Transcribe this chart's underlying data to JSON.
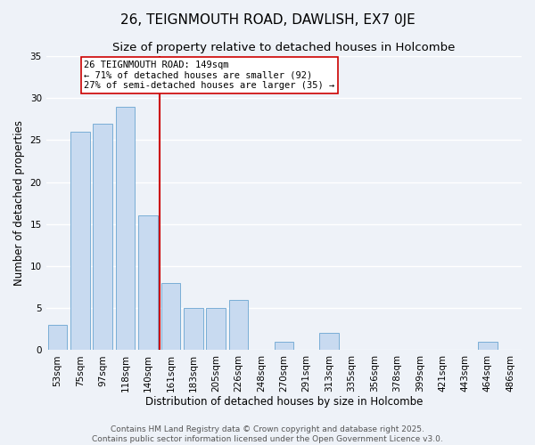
{
  "title": "26, TEIGNMOUTH ROAD, DAWLISH, EX7 0JE",
  "subtitle": "Size of property relative to detached houses in Holcombe",
  "xlabel": "Distribution of detached houses by size in Holcombe",
  "ylabel": "Number of detached properties",
  "categories": [
    "53sqm",
    "75sqm",
    "97sqm",
    "118sqm",
    "140sqm",
    "161sqm",
    "183sqm",
    "205sqm",
    "226sqm",
    "248sqm",
    "270sqm",
    "291sqm",
    "313sqm",
    "335sqm",
    "356sqm",
    "378sqm",
    "399sqm",
    "421sqm",
    "443sqm",
    "464sqm",
    "486sqm"
  ],
  "values": [
    3,
    26,
    27,
    29,
    16,
    8,
    5,
    5,
    6,
    0,
    1,
    0,
    2,
    0,
    0,
    0,
    0,
    0,
    0,
    1,
    0
  ],
  "bar_color": "#c8daf0",
  "bar_edge_color": "#7aaed6",
  "ylim": [
    0,
    35
  ],
  "yticks": [
    0,
    5,
    10,
    15,
    20,
    25,
    30,
    35
  ],
  "vline_x": 4.5,
  "vline_color": "#cc0000",
  "annotation_line1": "26 TEIGNMOUTH ROAD: 149sqm",
  "annotation_line2": "← 71% of detached houses are smaller (92)",
  "annotation_line3": "27% of semi-detached houses are larger (35) →",
  "annotation_box_color": "#ffffff",
  "annotation_box_edge_color": "#cc0000",
  "footer_line1": "Contains HM Land Registry data © Crown copyright and database right 2025.",
  "footer_line2": "Contains public sector information licensed under the Open Government Licence v3.0.",
  "background_color": "#eef2f8",
  "grid_color": "#ffffff",
  "title_fontsize": 11,
  "subtitle_fontsize": 9.5,
  "label_fontsize": 8.5,
  "tick_fontsize": 7.5,
  "annotation_fontsize": 7.5,
  "footer_fontsize": 6.5
}
